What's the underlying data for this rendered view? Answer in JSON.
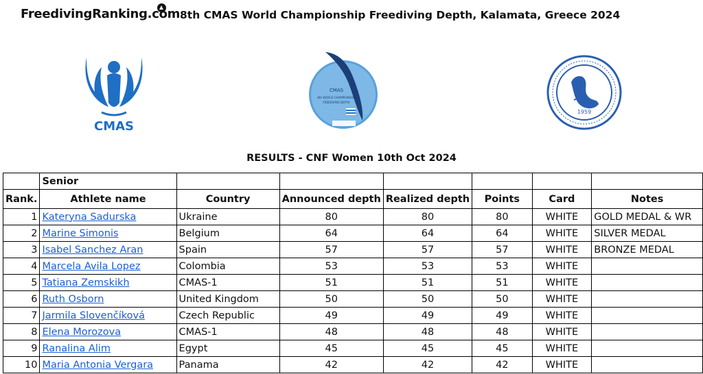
{
  "header": {
    "brand": "FreedivingRanking.com",
    "event_title": "8th CMAS World Championship Freediving Depth, Kalamata, Greece 2024"
  },
  "logos": {
    "cmas_text": "CMAS",
    "wc_text_line1": "CMAS",
    "wc_text_line2": "8th WORLD CHAMPIONSHIP",
    "wc_text_line3": "FREEDIVING DEPTH",
    "club_year": "1959"
  },
  "results_title": "RESULTS - CNF Women 10th Oct 2024",
  "table": {
    "group_header": "Senior",
    "columns": [
      "Rank.",
      "Athlete name",
      "Country",
      "Announced depth",
      "Realized depth",
      "Points",
      "Card",
      "Notes"
    ],
    "rows": [
      {
        "rank": "1",
        "name": "Kateryna Sadurska",
        "country": "Ukraine",
        "announced": "80",
        "realized": "80",
        "points": "80",
        "card": "WHITE",
        "notes": "GOLD MEDAL & WR"
      },
      {
        "rank": "2",
        "name": "Marine Simonis",
        "country": "Belgium",
        "announced": "64",
        "realized": "64",
        "points": "64",
        "card": "WHITE",
        "notes": "SILVER MEDAL"
      },
      {
        "rank": "3",
        "name": "Isabel Sanchez Aran",
        "country": "Spain",
        "announced": "57",
        "realized": "57",
        "points": "57",
        "card": "WHITE",
        "notes": "BRONZE MEDAL"
      },
      {
        "rank": "4",
        "name": "Marcela Avila Lopez",
        "country": "Colombia",
        "announced": "53",
        "realized": "53",
        "points": "53",
        "card": "WHITE",
        "notes": ""
      },
      {
        "rank": "5",
        "name": "Tatiana Zemskikh",
        "country": "CMAS-1",
        "announced": "51",
        "realized": "51",
        "points": "51",
        "card": "WHITE",
        "notes": ""
      },
      {
        "rank": "6",
        "name": "Ruth Osborn",
        "country": "United Kingdom",
        "announced": "50",
        "realized": "50",
        "points": "50",
        "card": "WHITE",
        "notes": ""
      },
      {
        "rank": "7",
        "name": "Jarmila Slovenčíková",
        "country": "Czech Republic",
        "announced": "49",
        "realized": "49",
        "points": "49",
        "card": "WHITE",
        "notes": ""
      },
      {
        "rank": "8",
        "name": "Elena Morozova",
        "country": "CMAS-1",
        "announced": "48",
        "realized": "48",
        "points": "48",
        "card": "WHITE",
        "notes": ""
      },
      {
        "rank": "9",
        "name": "Ranalina Alim",
        "country": "Egypt",
        "announced": "45",
        "realized": "45",
        "points": "45",
        "card": "WHITE",
        "notes": ""
      },
      {
        "rank": "10",
        "name": "Maria Antonia Vergara",
        "country": "Panama",
        "announced": "42",
        "realized": "42",
        "points": "42",
        "card": "WHITE",
        "notes": ""
      }
    ]
  },
  "colors": {
    "link": "#1a5fd6",
    "cmas_blue": "#1f6fc4",
    "club_blue": "#2a5fb0"
  }
}
